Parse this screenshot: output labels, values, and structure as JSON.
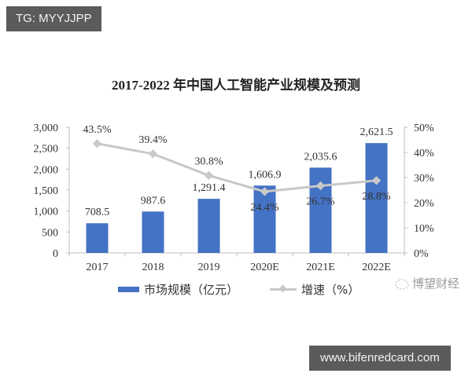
{
  "watermark_top": "TG: MYYJJPP",
  "watermark_bottom": "www.bifenredcard.com",
  "source_badge": {
    "icon": "wechat-icon",
    "text": "博望财经"
  },
  "chart_data": {
    "type": "bar+line",
    "title": "2017-2022 年中国人工智能产业规模及预测",
    "categories": [
      "2017",
      "2018",
      "2019",
      "2020E",
      "2021E",
      "2022E"
    ],
    "series": [
      {
        "name": "市场规模（亿元）",
        "type": "bar",
        "axis": "left",
        "color": "#4472c4",
        "values": [
          708.5,
          987.6,
          1291.4,
          1606.9,
          2035.6,
          2621.5
        ],
        "labels": [
          "708.5",
          "987.6",
          "1,291.4",
          "1,606.9",
          "2,035.6",
          "2,621.5"
        ]
      },
      {
        "name": "增速（%）",
        "type": "line",
        "axis": "right",
        "color": "#c8c8c8",
        "values": [
          43.5,
          39.4,
          30.8,
          24.4,
          26.7,
          28.8
        ],
        "labels": [
          "43.5%",
          "39.4%",
          "30.8%",
          "24.4%",
          "26.7%",
          "28.8%"
        ]
      }
    ],
    "left_axis": {
      "ylim": [
        0,
        3000
      ],
      "ticks": [
        "0",
        "500",
        "1,000",
        "1,500",
        "2,000",
        "2,500",
        "3,000"
      ]
    },
    "right_axis": {
      "ylim": [
        0,
        50
      ],
      "ticks": [
        "0%",
        "10%",
        "20%",
        "30%",
        "40%",
        "50%"
      ]
    },
    "grid": false,
    "legend_position": "bottom"
  }
}
